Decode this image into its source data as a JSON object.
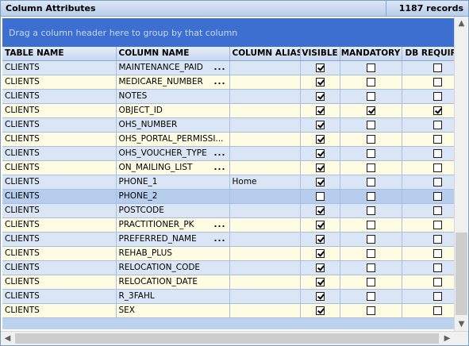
{
  "title": "Column Attributes",
  "record_count": "1187 records",
  "group_prompt": "Drag a column header here to group by that column",
  "columns": {
    "table_name": "TABLE NAME",
    "column_name": "COLUMN NAME",
    "column_alias": "COLUMN ALIAS",
    "visible": "VISIBLE",
    "mandatory": "MANDATORY",
    "db_required": "DB REQUIRED"
  },
  "rows": [
    {
      "table": "CLIENTS",
      "column": "MAINTENANCE_PAID",
      "ellipsis": "...",
      "alias": "",
      "visible": true,
      "mandatory": false,
      "db_required": false,
      "selected": false
    },
    {
      "table": "CLIENTS",
      "column": "MEDICARE_NUMBER",
      "ellipsis": "...",
      "alias": "",
      "visible": true,
      "mandatory": false,
      "db_required": false,
      "selected": false
    },
    {
      "table": "CLIENTS",
      "column": "NOTES",
      "ellipsis": "",
      "alias": "",
      "visible": true,
      "mandatory": false,
      "db_required": false,
      "selected": false
    },
    {
      "table": "CLIENTS",
      "column": "OBJECT_ID",
      "ellipsis": "",
      "alias": "",
      "visible": true,
      "mandatory": true,
      "db_required": true,
      "selected": false
    },
    {
      "table": "CLIENTS",
      "column": "OHS_NUMBER",
      "ellipsis": "",
      "alias": "",
      "visible": true,
      "mandatory": false,
      "db_required": false,
      "selected": false
    },
    {
      "table": "CLIENTS",
      "column": "OHS_PORTAL_PERMISSI...",
      "ellipsis": "",
      "alias": "",
      "visible": true,
      "mandatory": false,
      "db_required": false,
      "selected": false
    },
    {
      "table": "CLIENTS",
      "column": "OHS_VOUCHER_TYPE",
      "ellipsis": "...",
      "alias": "",
      "visible": true,
      "mandatory": false,
      "db_required": false,
      "selected": false
    },
    {
      "table": "CLIENTS",
      "column": "ON_MAILING_LIST",
      "ellipsis": "...",
      "alias": "",
      "visible": true,
      "mandatory": false,
      "db_required": false,
      "selected": false
    },
    {
      "table": "CLIENTS",
      "column": "PHONE_1",
      "ellipsis": "",
      "alias": "Home",
      "visible": true,
      "mandatory": false,
      "db_required": false,
      "selected": false
    },
    {
      "table": "CLIENTS",
      "column": "PHONE_2",
      "ellipsis": "",
      "alias": "",
      "visible": false,
      "mandatory": false,
      "db_required": false,
      "selected": true
    },
    {
      "table": "CLIENTS",
      "column": "POSTCODE",
      "ellipsis": "",
      "alias": "",
      "visible": true,
      "mandatory": false,
      "db_required": false,
      "selected": false
    },
    {
      "table": "CLIENTS",
      "column": "PRACTITIONER_PK",
      "ellipsis": "...",
      "alias": "",
      "visible": true,
      "mandatory": false,
      "db_required": false,
      "selected": false
    },
    {
      "table": "CLIENTS",
      "column": "PREFERRED_NAME",
      "ellipsis": "...",
      "alias": "",
      "visible": true,
      "mandatory": false,
      "db_required": false,
      "selected": false
    },
    {
      "table": "CLIENTS",
      "column": "REHAB_PLUS",
      "ellipsis": "",
      "alias": "",
      "visible": true,
      "mandatory": false,
      "db_required": false,
      "selected": false
    },
    {
      "table": "CLIENTS",
      "column": "RELOCATION_CODE",
      "ellipsis": "",
      "alias": "",
      "visible": true,
      "mandatory": false,
      "db_required": false,
      "selected": false
    },
    {
      "table": "CLIENTS",
      "column": "RELOCATION_DATE",
      "ellipsis": "",
      "alias": "",
      "visible": true,
      "mandatory": false,
      "db_required": false,
      "selected": false
    },
    {
      "table": "CLIENTS",
      "column": "R_3FAHL",
      "ellipsis": "",
      "alias": "",
      "visible": true,
      "mandatory": false,
      "db_required": false,
      "selected": false
    },
    {
      "table": "CLIENTS",
      "column": "SEX",
      "ellipsis": "",
      "alias": "",
      "visible": true,
      "mandatory": false,
      "db_required": false,
      "selected": false
    }
  ],
  "icons": {
    "scroll_up": "scroll-up-arrow-icon",
    "scroll_down": "scroll-down-arrow-icon",
    "scroll_left": "scroll-left-arrow-icon",
    "scroll_right": "scroll-right-arrow-icon"
  },
  "colors": {
    "group_panel": "#3d6fd1",
    "row_odd": "#dae6f6",
    "row_even": "#fefde4",
    "row_selected": "#b7cdee"
  }
}
